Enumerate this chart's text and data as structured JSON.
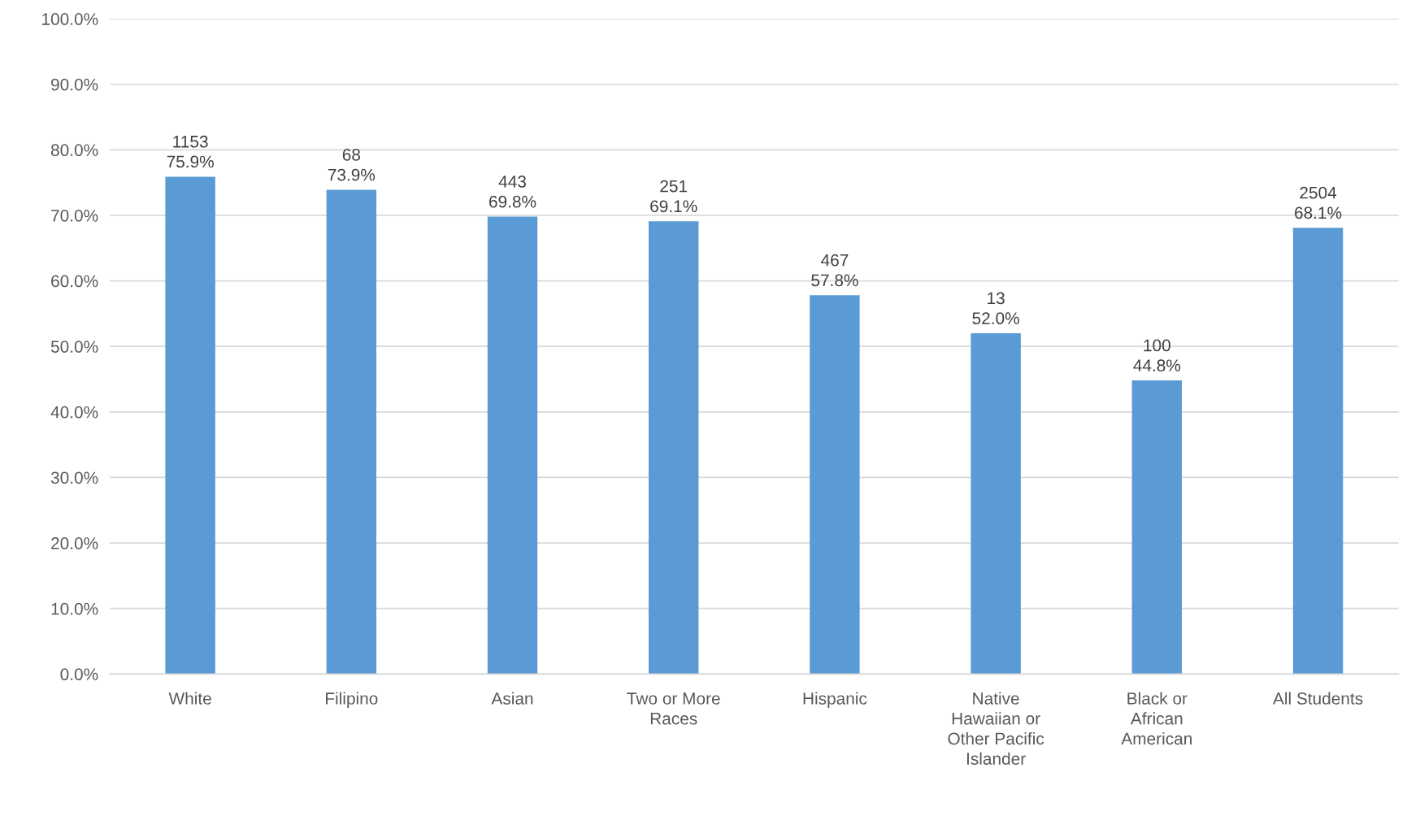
{
  "chart_data": {
    "type": "bar",
    "categories": [
      "White",
      "Filipino",
      "Asian",
      "Two or More\nRaces",
      "Hispanic",
      "Native\nHawaiian or\nOther Pacific\nIslander",
      "Black or\nAfrican\nAmerican",
      "All Students"
    ],
    "values": [
      75.9,
      73.9,
      69.8,
      69.1,
      57.8,
      52.0,
      44.8,
      68.1
    ],
    "value_labels": [
      "1153\n75.9%",
      "68\n73.9%",
      "443\n69.8%",
      "251\n69.1%",
      "467\n57.8%",
      "13\n52.0%",
      "100\n44.8%",
      "2504\n68.1%"
    ],
    "color": "#5b9bd5",
    "ylim": [
      0,
      100
    ],
    "yticks": [
      {
        "value": 0,
        "label": "0.0%"
      },
      {
        "value": 10,
        "label": "10.0%"
      },
      {
        "value": 20,
        "label": "20.0%"
      },
      {
        "value": 30,
        "label": "30.0%"
      },
      {
        "value": 40,
        "label": "40.0%"
      },
      {
        "value": 50,
        "label": "50.0%"
      },
      {
        "value": 60,
        "label": "60.0%"
      },
      {
        "value": 70,
        "label": "70.0%"
      },
      {
        "value": 80,
        "label": "80.0%"
      },
      {
        "value": 90,
        "label": "90.0%"
      },
      {
        "value": 100,
        "label": "100.0%"
      }
    ],
    "grid": "y",
    "legend": false
  }
}
